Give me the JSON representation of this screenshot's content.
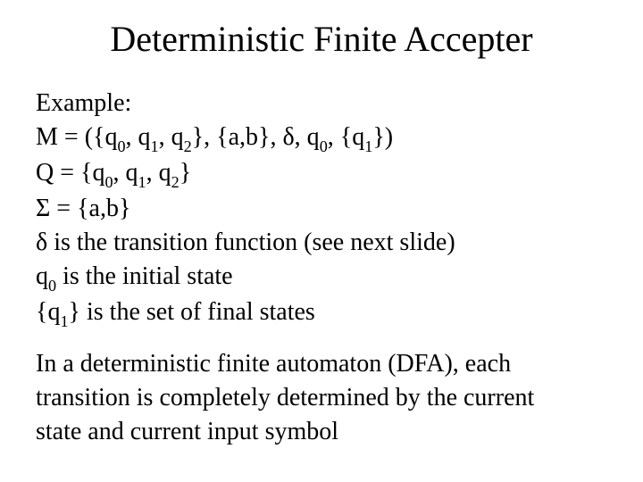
{
  "title": "Deterministic Finite Accepter",
  "lines": {
    "l1": "Example:",
    "l2_pre": "M = ({q",
    "l2_s0": "0",
    "l2_a": ", q",
    "l2_s1": "1",
    "l2_b": ", q",
    "l2_s2": "2",
    "l2_c": "}, {a,b}, δ, q",
    "l2_s0b": "0",
    "l2_d": ", {q",
    "l2_s1b": "1",
    "l2_e": "})",
    "l3_pre": "Q = {q",
    "l3_s0": "0",
    "l3_a": ", q",
    "l3_s1": "1",
    "l3_b": ", q",
    "l3_s2": "2",
    "l3_c": "}",
    "l4": "Σ = {a,b}",
    "l5": "δ is the transition function (see next slide)",
    "l6_pre": "q",
    "l6_s0": "0",
    "l6_post": " is the initial state",
    "l7_pre": "{q",
    "l7_s1": "1",
    "l7_post": "} is the set of final states",
    "p2a": "In a deterministic finite automaton (DFA), each",
    "p2b": "transition is completely determined by the current",
    "p2c": "state and current input symbol"
  },
  "style": {
    "title_fontsize": 40,
    "body_fontsize": 28,
    "background_color": "#ffffff",
    "text_color": "#000000",
    "font_family": "Times New Roman"
  }
}
